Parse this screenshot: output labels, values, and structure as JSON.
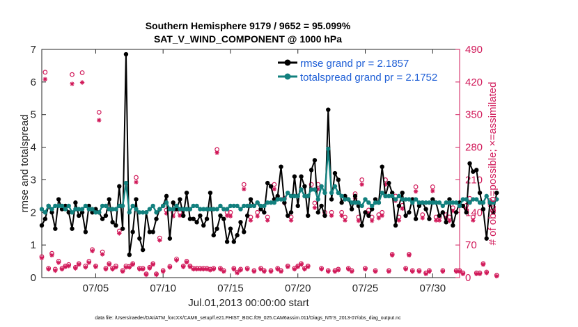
{
  "chart_data": {
    "type": "line",
    "title_line1": "Southern Hemisphere 9179 / 9652 = 95.099%",
    "title_line2": "SAT_V_WIND_COMPONENT @ 1000 hPa",
    "xlabel": "Jul.01,2013 00:00:00 start",
    "ylabel": "rmse and totalspread",
    "ylabel_right": "# of obs: o=possible; ×=assimilated",
    "footnote": "data file: /Users/raeder/DAI/ATM_forcXX/CAM6_setup/f.e21.FHIST_BGC.f09_025.CAM6assim.011/Diags_NTrS_2013-07/obs_diag_output.nc",
    "xlim": [
      1,
      32
    ],
    "ylim": [
      0,
      7
    ],
    "ylim_right": [
      0,
      490
    ],
    "x_ticks": [
      5,
      10,
      15,
      20,
      25,
      30
    ],
    "x_tick_labels": [
      "07/05",
      "07/10",
      "07/15",
      "07/20",
      "07/25",
      "07/30"
    ],
    "y_ticks": [
      0,
      1,
      2,
      3,
      4,
      5,
      6,
      7
    ],
    "y_tick_labels": [
      "0",
      "1",
      "2",
      "3",
      "4",
      "5",
      "6",
      "7"
    ],
    "y_right_ticks": [
      0,
      70,
      140,
      210,
      280,
      350,
      420,
      490
    ],
    "y_right_tick_labels": [
      "0",
      "70",
      "140",
      "210",
      "280",
      "350",
      "420",
      "490"
    ],
    "x_start": 1.0,
    "x_step": 0.25,
    "series": [
      {
        "name": "rmse grand pr = 2.1857",
        "color": "#000000",
        "values": [
          1.6,
          1.8,
          2.2,
          2.0,
          1.5,
          2.4,
          2.1,
          2.2,
          2.0,
          1.5,
          2.3,
          1.9,
          2.0,
          1.4,
          2.2,
          2.0,
          2.1,
          2.0,
          1.8,
          1.9,
          2.4,
          1.7,
          1.6,
          2.8,
          1.5,
          6.85,
          0.7,
          1.4,
          2.4,
          1.2,
          0.85,
          2.0,
          1.4,
          1.4,
          1.8,
          2.1,
          2.2,
          2.5,
          1.2,
          2.3,
          2.1,
          2.4,
          1.9,
          2.6,
          1.8,
          1.8,
          1.7,
          1.9,
          1.6,
          1.8,
          2.6,
          1.3,
          1.5,
          1.9,
          1.8,
          1.1,
          1.5,
          1.1,
          1.3,
          1.7,
          1.4,
          1.9,
          2.4,
          2.2,
          2.3,
          2.1,
          2.0,
          2.9,
          2.8,
          2.4,
          2.5,
          3.4,
          2.3,
          1.9,
          2.0,
          3.1,
          2.2,
          3.1,
          2.8,
          1.9,
          3.3,
          3.6,
          2.0,
          2.2,
          1.9,
          5.15,
          2.4,
          3.2,
          3.0,
          2.3,
          2.5,
          2.4,
          2.1,
          2.5,
          2.2,
          1.6,
          2.0,
          1.9,
          2.1,
          2.4,
          2.3,
          3.4,
          2.5,
          2.9,
          2.6,
          1.6,
          2.2,
          2.6,
          1.9,
          2.0,
          2.4,
          1.8,
          2.2,
          2.3,
          2.1,
          1.8,
          2.4,
          2.3,
          1.9,
          2.0,
          1.7,
          2.4,
          1.6,
          2.0,
          2.3,
          2.2,
          2.0,
          3.5,
          3.25,
          3.3,
          2.6,
          2.1,
          1.2,
          2.3,
          2.0,
          2.6
        ],
        "values_tail_note": "",
        "marker": "filled-circle"
      },
      {
        "name": "totalspread grand pr = 2.1752",
        "color": "#12807e",
        "values": [
          2.1,
          2.0,
          2.2,
          2.1,
          2.2,
          2.2,
          2.2,
          2.1,
          2.2,
          2.0,
          2.1,
          2.1,
          2.1,
          2.2,
          2.1,
          2.1,
          2.0,
          2.0,
          2.2,
          2.2,
          2.1,
          2.1,
          2.1,
          2.2,
          2.2,
          2.9,
          2.0,
          2.2,
          2.1,
          2.0,
          2.0,
          2.0,
          2.1,
          2.2,
          2.0,
          2.1,
          2.2,
          2.3,
          2.1,
          2.1,
          2.2,
          2.1,
          2.1,
          2.1,
          2.1,
          2.2,
          2.2,
          2.1,
          2.1,
          2.1,
          2.1,
          2.1,
          2.1,
          2.2,
          2.1,
          2.1,
          2.2,
          2.2,
          2.2,
          2.1,
          2.2,
          2.2,
          2.2,
          2.2,
          2.3,
          2.2,
          2.2,
          2.3,
          2.3,
          2.3,
          2.4,
          2.4,
          2.4,
          2.6,
          2.5,
          2.5,
          2.5,
          2.7,
          2.5,
          2.5,
          2.7,
          2.7,
          2.4,
          2.8,
          2.6,
          3.95,
          2.6,
          2.8,
          2.6,
          2.5,
          2.4,
          2.4,
          2.3,
          2.3,
          2.3,
          2.2,
          2.4,
          2.3,
          2.2,
          2.3,
          2.3,
          2.6,
          2.5,
          2.5,
          2.5,
          2.4,
          2.5,
          2.4,
          2.4,
          2.4,
          2.3,
          2.4,
          2.3,
          2.3,
          2.3,
          2.3,
          2.3,
          2.3,
          2.3,
          2.2,
          2.3,
          2.3,
          2.3,
          2.3,
          2.2,
          2.4,
          2.4,
          2.3,
          2.4,
          2.4,
          2.3,
          2.3,
          2.5,
          2.3,
          2.3,
          2.4
        ],
        "marker": "filled-circle"
      },
      {
        "name": "obs possible",
        "color": "#d11a5a",
        "values": [
          45,
          441,
          20,
          52,
          18,
          35,
          20,
          25,
          28,
          436,
          22,
          30,
          440,
          25,
          35,
          60,
          25,
          355,
          55,
          20,
          30,
          20,
          25,
          100,
          15,
          25,
          24,
          30,
          215,
          20,
          20,
          8,
          22,
          30,
          8,
          85,
          15,
          145,
          24,
          140,
          40,
          140,
          25,
          35,
          25,
          20,
          20,
          20,
          20,
          20,
          18,
          20,
          275,
          20,
          15,
          140,
          140,
          20,
          12,
          18,
          200,
          20,
          130,
          15,
          140,
          20,
          15,
          130,
          15,
          200,
          20,
          15,
          170,
          25,
          130,
          20,
          25,
          30,
          20,
          25,
          200,
          160,
          200,
          20,
          140,
          15,
          140,
          15,
          18,
          140,
          130,
          20,
          15,
          180,
          130,
          210,
          20,
          145,
          130,
          15,
          135,
          140,
          210,
          15,
          50,
          175,
          130,
          155,
          20,
          50,
          15,
          195,
          15,
          135,
          10,
          15,
          195,
          130,
          130,
          15,
          135,
          130,
          150,
          15,
          15,
          10,
          155,
          170,
          130,
          10,
          10,
          30,
          12,
          165,
          150,
          5
        ],
        "marker": "open-circle"
      },
      {
        "name": "obs assimilated",
        "color": "#d11a5a",
        "values": [
          42,
          426,
          18,
          48,
          15,
          32,
          18,
          23,
          25,
          416,
          20,
          28,
          419,
          22,
          32,
          57,
          23,
          338,
          50,
          18,
          28,
          18,
          22,
          95,
          13,
          22,
          22,
          28,
          205,
          18,
          18,
          6,
          20,
          28,
          6,
          80,
          13,
          138,
          22,
          132,
          37,
          133,
          23,
          33,
          23,
          18,
          18,
          18,
          18,
          18,
          16,
          18,
          268,
          18,
          13,
          133,
          132,
          18,
          10,
          16,
          190,
          18,
          123,
          13,
          132,
          18,
          13,
          123,
          13,
          190,
          18,
          13,
          160,
          23,
          123,
          18,
          23,
          28,
          18,
          23,
          190,
          150,
          190,
          18,
          133,
          13,
          133,
          13,
          16,
          133,
          123,
          18,
          13,
          170,
          122,
          200,
          18,
          138,
          122,
          13,
          128,
          133,
          200,
          13,
          48,
          165,
          123,
          148,
          18,
          48,
          13,
          185,
          13,
          128,
          8,
          13,
          186,
          123,
          123,
          13,
          128,
          122,
          143,
          13,
          13,
          8,
          147,
          162,
          123,
          8,
          8,
          28,
          10,
          156,
          143,
          3
        ],
        "marker": "asterisk"
      }
    ],
    "legend_entries": [
      "rmse grand pr = 2.1857",
      "totalspread grand pr = 2.1752"
    ],
    "legend_position": "top-right"
  }
}
